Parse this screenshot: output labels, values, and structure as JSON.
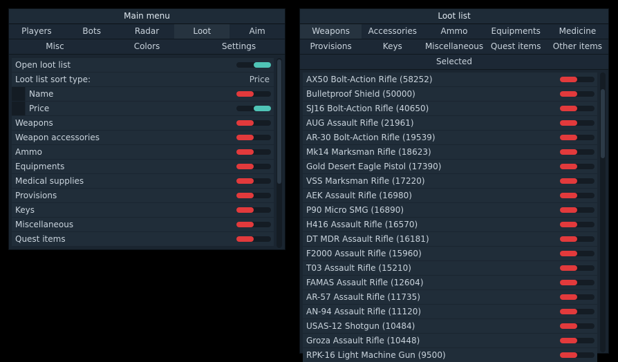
{
  "main_menu": {
    "title": "Main menu",
    "tabs_row1": [
      "Players",
      "Bots",
      "Radar",
      "Loot",
      "Aim"
    ],
    "tabs_row2": [
      "Misc",
      "Colors",
      "Settings"
    ],
    "active_tab": "Loot",
    "rows": [
      {
        "label": "Open loot list",
        "type": "toggle",
        "on": true
      },
      {
        "label": "Loot list sort type:",
        "type": "value",
        "value": "Price"
      },
      {
        "label": "Name",
        "type": "toggle",
        "on": false,
        "indent": true
      },
      {
        "label": "Price",
        "type": "toggle",
        "on": true,
        "indent": true
      },
      {
        "label": "Weapons",
        "type": "toggle",
        "on": false
      },
      {
        "label": "Weapon accessories",
        "type": "toggle",
        "on": false
      },
      {
        "label": "Ammo",
        "type": "toggle",
        "on": false
      },
      {
        "label": "Equipments",
        "type": "toggle",
        "on": false
      },
      {
        "label": "Medical supplies",
        "type": "toggle",
        "on": false
      },
      {
        "label": "Provisions",
        "type": "toggle",
        "on": false
      },
      {
        "label": "Keys",
        "type": "toggle",
        "on": false
      },
      {
        "label": "Miscellaneous",
        "type": "toggle",
        "on": false
      },
      {
        "label": "Quest items",
        "type": "toggle",
        "on": false
      }
    ]
  },
  "loot_list": {
    "title": "Loot list",
    "tabs_row1": [
      "Weapons",
      "Accessories",
      "Ammo",
      "Equipments",
      "Medicine"
    ],
    "tabs_row2": [
      "Provisions",
      "Keys",
      "Miscellaneous",
      "Quest items",
      "Other items"
    ],
    "tab_selected": "Selected",
    "active_tab": "Weapons",
    "items": [
      "AX50 Bolt-Action Rifle (58252)",
      "Bulletproof Shield (50000)",
      "SJ16 Bolt-Action Rifle (40650)",
      "AUG Assault Rifle (21961)",
      "AR-30 Bolt-Action Rifle (19539)",
      "Mk14 Marksman Rifle (18623)",
      "Gold Desert Eagle Pistol (17390)",
      "VSS Marksman Rifle (17220)",
      "AEK Assault Rifle (16980)",
      "P90 Micro SMG (16890)",
      "H416 Assault Rifle (16570)",
      "DT MDR Assault Rifle (16181)",
      "F2000 Assault Rifle (15960)",
      "T03 Assault Rifle (15210)",
      "FAMAS Assault Rifle (12604)",
      "AR-57 Assault Rifle (11735)",
      "AN-94 Assault Rifle (11120)",
      "USAS-12 Shotgun (10484)",
      "Groza Assault Rifle (10448)",
      "RPK-16 Light Machine Gun (9500)"
    ]
  },
  "colors": {
    "on": "#4fc4b6",
    "off": "#e23a3c"
  }
}
